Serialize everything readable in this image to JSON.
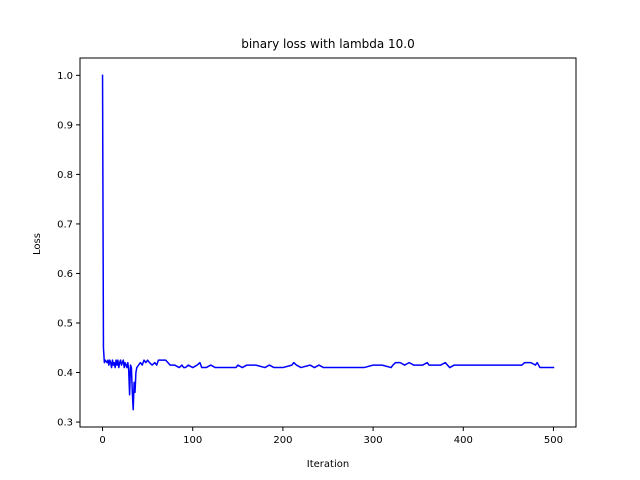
{
  "chart_data": {
    "type": "line",
    "title": "binary loss with lambda 10.0",
    "xlabel": "Iteration",
    "ylabel": "Loss",
    "xlim": [
      -25,
      525
    ],
    "ylim": [
      0.29,
      1.035
    ],
    "xticks": [
      0,
      100,
      200,
      300,
      400,
      500
    ],
    "yticks": [
      0.3,
      0.4,
      0.5,
      0.6,
      0.7,
      0.8,
      0.9,
      1.0
    ],
    "xtick_labels": [
      "0",
      "100",
      "200",
      "300",
      "400",
      "500"
    ],
    "ytick_labels": [
      "0.3",
      "0.4",
      "0.5",
      "0.6",
      "0.7",
      "0.8",
      "0.9",
      "1.0"
    ],
    "grid": false,
    "legend": "none",
    "series": [
      {
        "color": "#0000ff",
        "x": [
          0,
          1,
          2,
          3,
          5,
          6,
          7,
          8,
          9,
          10,
          11,
          12,
          13,
          14,
          15,
          16,
          17,
          18,
          19,
          20,
          21,
          22,
          23,
          24,
          25,
          26,
          27,
          28,
          29,
          30,
          31,
          32,
          33,
          34,
          35,
          36,
          37,
          38,
          40,
          42,
          44,
          46,
          48,
          50,
          52,
          55,
          58,
          60,
          62,
          65,
          70,
          75,
          80,
          85,
          88,
          90,
          92,
          95,
          100,
          105,
          108,
          110,
          115,
          120,
          125,
          130,
          140,
          148,
          150,
          155,
          160,
          170,
          180,
          185,
          190,
          200,
          210,
          212,
          215,
          220,
          230,
          235,
          240,
          245,
          250,
          260,
          270,
          280,
          290,
          300,
          305,
          310,
          320,
          322,
          325,
          330,
          335,
          340,
          345,
          350,
          355,
          360,
          362,
          365,
          370,
          375,
          380,
          385,
          390,
          400,
          410,
          420,
          430,
          440,
          445,
          450,
          455,
          460,
          465,
          468,
          470,
          475,
          480,
          482,
          485,
          490,
          500
        ],
        "y": [
          1.0,
          0.45,
          0.42,
          0.425,
          0.42,
          0.425,
          0.415,
          0.425,
          0.42,
          0.41,
          0.425,
          0.415,
          0.42,
          0.41,
          0.425,
          0.415,
          0.425,
          0.41,
          0.42,
          0.425,
          0.415,
          0.42,
          0.425,
          0.41,
          0.42,
          0.415,
          0.41,
          0.42,
          0.405,
          0.355,
          0.415,
          0.41,
          0.36,
          0.325,
          0.38,
          0.36,
          0.4,
          0.41,
          0.415,
          0.42,
          0.415,
          0.425,
          0.42,
          0.425,
          0.42,
          0.415,
          0.42,
          0.415,
          0.425,
          0.425,
          0.425,
          0.415,
          0.415,
          0.41,
          0.415,
          0.41,
          0.41,
          0.415,
          0.41,
          0.415,
          0.42,
          0.41,
          0.41,
          0.415,
          0.41,
          0.41,
          0.41,
          0.41,
          0.415,
          0.41,
          0.415,
          0.415,
          0.41,
          0.415,
          0.41,
          0.41,
          0.415,
          0.42,
          0.415,
          0.41,
          0.415,
          0.41,
          0.415,
          0.41,
          0.41,
          0.41,
          0.41,
          0.41,
          0.41,
          0.415,
          0.415,
          0.415,
          0.41,
          0.415,
          0.42,
          0.42,
          0.415,
          0.42,
          0.415,
          0.415,
          0.415,
          0.42,
          0.415,
          0.415,
          0.415,
          0.415,
          0.42,
          0.41,
          0.415,
          0.415,
          0.415,
          0.415,
          0.415,
          0.415,
          0.415,
          0.415,
          0.415,
          0.415,
          0.415,
          0.42,
          0.42,
          0.42,
          0.415,
          0.42,
          0.41,
          0.41,
          0.41
        ]
      }
    ]
  }
}
